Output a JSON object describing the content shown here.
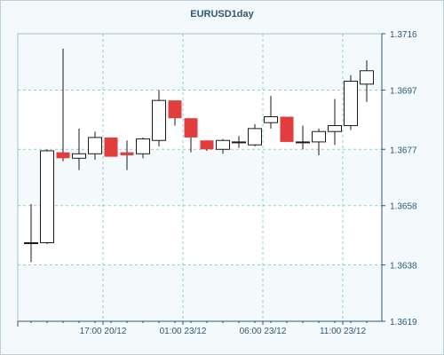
{
  "chart_data": {
    "type": "candlestick",
    "title": "EURUSD1day",
    "xlabel": "",
    "ylabel": "",
    "ylim": [
      1.3619,
      1.3716
    ],
    "y_ticks": [
      "1.3716",
      "1.3697",
      "1.3677",
      "1.3658",
      "1.3638",
      "1.3619"
    ],
    "x_tick_labels": [
      "17:00 20/12",
      "01:00 23/12",
      "06:00 23/12",
      "11:00 23/12"
    ],
    "x_tick_index": [
      4.5,
      9.5,
      14.5,
      19.5
    ],
    "grid": true,
    "colors": {
      "bearish_fill": "#e23c3c",
      "bullish_fill": "#ffffff",
      "candle_outline": "#1a1a1a",
      "grid_line": "#8fcbd6",
      "axis": "#2a5a78",
      "band": "#ffffff",
      "plot_bg": "#f4f9fb"
    },
    "candles": [
      {
        "o": 1.36455,
        "h": 1.36585,
        "l": 1.3639,
        "c": 1.36455
      },
      {
        "o": 1.36455,
        "h": 1.3677,
        "l": 1.3645,
        "c": 1.36765
      },
      {
        "o": 1.3676,
        "h": 1.3711,
        "l": 1.3673,
        "c": 1.3674
      },
      {
        "o": 1.3674,
        "h": 1.3684,
        "l": 1.367,
        "c": 1.36755
      },
      {
        "o": 1.36755,
        "h": 1.3683,
        "l": 1.36735,
        "c": 1.3681
      },
      {
        "o": 1.3681,
        "h": 1.3681,
        "l": 1.3675,
        "c": 1.36745
      },
      {
        "o": 1.3676,
        "h": 1.368,
        "l": 1.367,
        "c": 1.3675
      },
      {
        "o": 1.36755,
        "h": 1.3681,
        "l": 1.3674,
        "c": 1.36805
      },
      {
        "o": 1.368,
        "h": 1.3697,
        "l": 1.3678,
        "c": 1.36935
      },
      {
        "o": 1.36935,
        "h": 1.36935,
        "l": 1.3685,
        "c": 1.36875
      },
      {
        "o": 1.36875,
        "h": 1.36875,
        "l": 1.3676,
        "c": 1.3681
      },
      {
        "o": 1.368,
        "h": 1.368,
        "l": 1.36765,
        "c": 1.3677
      },
      {
        "o": 1.3677,
        "h": 1.36805,
        "l": 1.36755,
        "c": 1.368
      },
      {
        "o": 1.36795,
        "h": 1.36815,
        "l": 1.36775,
        "c": 1.36795
      },
      {
        "o": 1.36785,
        "h": 1.36855,
        "l": 1.3678,
        "c": 1.3684
      },
      {
        "o": 1.3686,
        "h": 1.3695,
        "l": 1.3684,
        "c": 1.3688
      },
      {
        "o": 1.3688,
        "h": 1.3688,
        "l": 1.36795,
        "c": 1.36795
      },
      {
        "o": 1.36795,
        "h": 1.3685,
        "l": 1.3677,
        "c": 1.36795
      },
      {
        "o": 1.36795,
        "h": 1.3684,
        "l": 1.3675,
        "c": 1.3683
      },
      {
        "o": 1.3683,
        "h": 1.3694,
        "l": 1.36785,
        "c": 1.3685
      },
      {
        "o": 1.3685,
        "h": 1.3702,
        "l": 1.36835,
        "c": 1.37
      },
      {
        "o": 1.3699,
        "h": 1.3707,
        "l": 1.3693,
        "c": 1.37035
      }
    ]
  }
}
